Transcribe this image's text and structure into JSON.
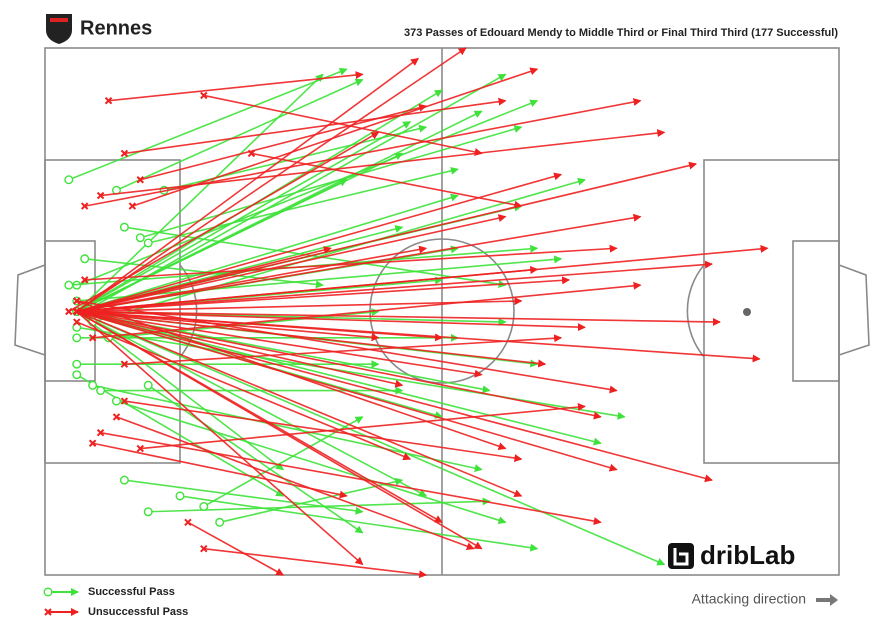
{
  "team": "Rennes",
  "brand": "dribLab",
  "direction_label": "Attacking direction",
  "chart_data": {
    "type": "passmap",
    "title": "373 Passes of Edouard Mendy to Middle Third or Final Third Third (177 Successful)",
    "xlim": [
      0,
      100
    ],
    "ylim": [
      0,
      100
    ],
    "series": [
      {
        "name": "Successful Pass",
        "color": "#3ee23a",
        "passes": [
          [
            4,
            50,
            35,
            95
          ],
          [
            4,
            50,
            45,
            80
          ],
          [
            4,
            50,
            55,
            88
          ],
          [
            4,
            50,
            60,
            70
          ],
          [
            4,
            50,
            52,
            62
          ],
          [
            4,
            50,
            62,
            40
          ],
          [
            4,
            50,
            50,
            30
          ],
          [
            4,
            50,
            48,
            15
          ],
          [
            4,
            50,
            70,
            25
          ],
          [
            4,
            50,
            30,
            20
          ],
          [
            3,
            75,
            38,
            96
          ],
          [
            9,
            73,
            40,
            94
          ],
          [
            15,
            73,
            48,
            85
          ],
          [
            13,
            63,
            52,
            77
          ],
          [
            12,
            64,
            60,
            85
          ],
          [
            10,
            66,
            58,
            55
          ],
          [
            5,
            60,
            35,
            55
          ],
          [
            4,
            40,
            42,
            40
          ],
          [
            4,
            38,
            30,
            15
          ],
          [
            6,
            36,
            55,
            20
          ],
          [
            9,
            33,
            58,
            10
          ],
          [
            13,
            36,
            40,
            8
          ],
          [
            7,
            35,
            45,
            35
          ],
          [
            4,
            45,
            52,
            45
          ],
          [
            4,
            52,
            65,
            60
          ],
          [
            4,
            55,
            62,
            90
          ],
          [
            5,
            50,
            58,
            95
          ],
          [
            6,
            48,
            68,
            75
          ],
          [
            4,
            47,
            73,
            30
          ],
          [
            4,
            50,
            58,
            48
          ],
          [
            10,
            18,
            40,
            12
          ],
          [
            17,
            15,
            62,
            5
          ],
          [
            13,
            12,
            56,
            14
          ],
          [
            22,
            10,
            45,
            18
          ],
          [
            20,
            13,
            40,
            30
          ],
          [
            4,
            50,
            52,
            72
          ],
          [
            4,
            50,
            50,
            92
          ],
          [
            4,
            50,
            45,
            66
          ],
          [
            8,
            45,
            42,
            50
          ],
          [
            4,
            50,
            38,
            75
          ],
          [
            4,
            50,
            56,
            35
          ],
          [
            4,
            50,
            50,
            56
          ],
          [
            3,
            55,
            62,
            62
          ],
          [
            4,
            50,
            46,
            86
          ],
          [
            4,
            50,
            78,
            2
          ]
        ]
      },
      {
        "name": "Unsuccessful Pass",
        "color": "#ee2020",
        "passes": [
          [
            8,
            90,
            40,
            95
          ],
          [
            20,
            91,
            55,
            80
          ],
          [
            26,
            80,
            60,
            70
          ],
          [
            12,
            75,
            48,
            89
          ],
          [
            5,
            70,
            75,
            90
          ],
          [
            7,
            72,
            78,
            84
          ],
          [
            10,
            80,
            58,
            90
          ],
          [
            4,
            50,
            53,
            100
          ],
          [
            4,
            50,
            47,
            98
          ],
          [
            4,
            50,
            65,
            76
          ],
          [
            4,
            50,
            84,
            59
          ],
          [
            4,
            50,
            91,
            62
          ],
          [
            4,
            50,
            75,
            68
          ],
          [
            4,
            50,
            90,
            41
          ],
          [
            4,
            50,
            85,
            48
          ],
          [
            4,
            50,
            72,
            20
          ],
          [
            4,
            50,
            84,
            18
          ],
          [
            4,
            50,
            70,
            30
          ],
          [
            4,
            50,
            60,
            15
          ],
          [
            4,
            50,
            55,
            5
          ],
          [
            4,
            50,
            40,
            2
          ],
          [
            4,
            50,
            63,
            40
          ],
          [
            4,
            50,
            66,
            56
          ],
          [
            4,
            50,
            50,
            10
          ],
          [
            6,
            25,
            38,
            15
          ],
          [
            7,
            27,
            70,
            10
          ],
          [
            10,
            33,
            60,
            22
          ],
          [
            12,
            24,
            68,
            32
          ],
          [
            9,
            30,
            54,
            5
          ],
          [
            20,
            5,
            48,
            0
          ],
          [
            18,
            10,
            30,
            0
          ],
          [
            4,
            50,
            62,
            58
          ],
          [
            4,
            50,
            58,
            68
          ],
          [
            4,
            50,
            45,
            36
          ],
          [
            4,
            50,
            42,
            45
          ],
          [
            4,
            50,
            48,
            62
          ],
          [
            10,
            40,
            65,
            45
          ],
          [
            6,
            45,
            75,
            55
          ],
          [
            5,
            56,
            72,
            62
          ],
          [
            4,
            52,
            72,
            35
          ],
          [
            4,
            52,
            58,
            24
          ],
          [
            3,
            50,
            42,
            84
          ],
          [
            4,
            50,
            50,
            45
          ],
          [
            4,
            50,
            36,
            62
          ],
          [
            4,
            48,
            46,
            22
          ],
          [
            4,
            50,
            82,
            78
          ],
          [
            4,
            50,
            60,
            52
          ],
          [
            4,
            50,
            68,
            47
          ],
          [
            4,
            50,
            55,
            38
          ],
          [
            11,
            70,
            62,
            96
          ]
        ]
      }
    ]
  }
}
